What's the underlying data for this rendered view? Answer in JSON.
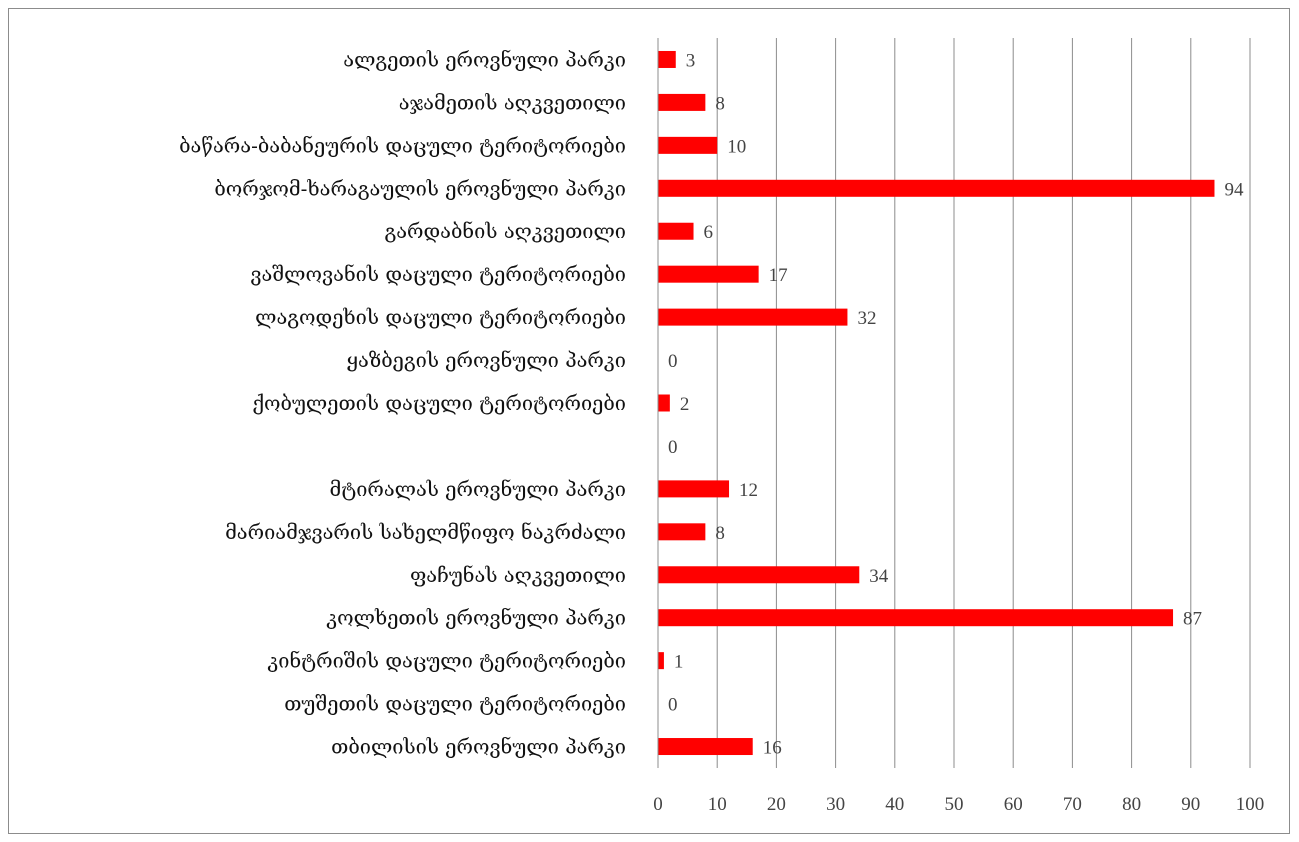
{
  "chart_data": {
    "type": "bar",
    "orientation": "horizontal",
    "categories": [
      "ალგეთის   ეროვნული პარკი",
      "აჯამეთის აღკვეთილი",
      "ბაწარა-ბაბანეურის დაცული ტერიტორიები",
      "ბორჯომ-ხარაგაულის ეროვნული პარკი",
      "გარდაბნის აღკვეთილი",
      "ვაშლოვანის დაცული ტერიტორიები",
      "ლაგოდეხის დაცული ტერიტორიები",
      "ყაზბეგის ეროვნული პარკი",
      "ქობულეთის დაცული ტერიტორიები",
      "",
      "მტირალას ეროვნული პარკი",
      "მარიამჯვარის სახელმწიფო ნაკრძალი",
      "ფაჩუნას აღკვეთილი",
      "კოლხეთის ეროვნული პარკი",
      "კინტრიშის დაცული ტერიტორიები",
      "თუშეთის დაცული ტერიტორიები",
      "თბილისის ეროვნული პარკი"
    ],
    "values": [
      3,
      8,
      10,
      94,
      6,
      17,
      32,
      0,
      2,
      0,
      12,
      8,
      34,
      87,
      1,
      0,
      16
    ],
    "xlim": [
      0,
      100
    ],
    "xticks": [
      0,
      10,
      20,
      30,
      40,
      50,
      60,
      70,
      80,
      90,
      100
    ],
    "grid": "vertical",
    "bar_color": "#ff0000",
    "title": "",
    "xlabel": "",
    "ylabel": ""
  }
}
